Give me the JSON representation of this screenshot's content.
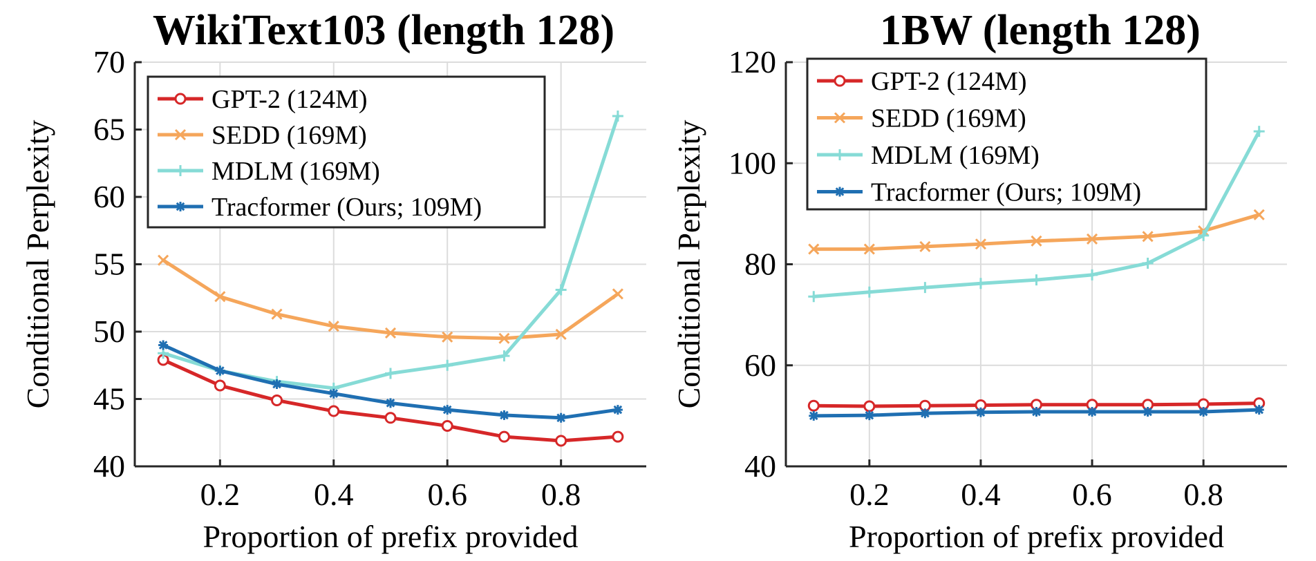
{
  "chart_data": [
    {
      "type": "line",
      "title": "WikiText103 (length 128)",
      "xlabel": "Proportion of prefix provided",
      "ylabel": "Conditional Perplexity",
      "xlim": [
        0.05,
        0.95
      ],
      "ylim": [
        40,
        70
      ],
      "xticks": [
        0.2,
        0.4,
        0.6,
        0.8
      ],
      "xtick_labels": [
        "0.2",
        "0.4",
        "0.6",
        "0.8"
      ],
      "yticks": [
        40,
        45,
        50,
        55,
        60,
        65,
        70
      ],
      "ytick_labels": [
        "40",
        "45",
        "50",
        "55",
        "60",
        "65",
        "70"
      ],
      "grid": true,
      "legend_position": "top-left",
      "x": [
        0.1,
        0.2,
        0.3,
        0.4,
        0.5,
        0.6,
        0.7,
        0.8,
        0.9
      ],
      "series": [
        {
          "name": "GPT-2 (124M)",
          "color": "#d62728",
          "marker": "circle",
          "values": [
            47.9,
            46.0,
            44.9,
            44.1,
            43.6,
            43.0,
            42.2,
            41.9,
            42.2
          ]
        },
        {
          "name": "SEDD (169M)",
          "color": "#f5a65b",
          "marker": "x",
          "values": [
            55.3,
            52.6,
            51.3,
            50.4,
            49.9,
            49.6,
            49.5,
            49.8,
            52.8
          ]
        },
        {
          "name": "MDLM (169M)",
          "color": "#86dbd6",
          "marker": "plus",
          "values": [
            48.4,
            47.1,
            46.3,
            45.8,
            46.9,
            47.5,
            48.2,
            53.1,
            66.0
          ]
        },
        {
          "name": "Tracformer (Ours; 109M)",
          "color": "#1f6fb2",
          "marker": "star",
          "values": [
            49.0,
            47.1,
            46.1,
            45.4,
            44.7,
            44.2,
            43.8,
            43.6,
            44.2
          ]
        }
      ]
    },
    {
      "type": "line",
      "title": "1BW (length 128)",
      "xlabel": "Proportion of prefix provided",
      "ylabel": "Conditional Perplexity",
      "xlim": [
        0.05,
        0.95
      ],
      "ylim": [
        40,
        120
      ],
      "xticks": [
        0.2,
        0.4,
        0.6,
        0.8
      ],
      "xtick_labels": [
        "0.2",
        "0.4",
        "0.6",
        "0.8"
      ],
      "yticks": [
        40,
        60,
        80,
        100,
        120
      ],
      "ytick_labels": [
        "40",
        "60",
        "80",
        "100",
        "120"
      ],
      "grid": true,
      "legend_position": "top-left",
      "x": [
        0.1,
        0.2,
        0.3,
        0.4,
        0.5,
        0.6,
        0.7,
        0.8,
        0.9
      ],
      "series": [
        {
          "name": "GPT-2 (124M)",
          "color": "#d62728",
          "marker": "circle",
          "values": [
            52.0,
            51.9,
            52.0,
            52.1,
            52.2,
            52.2,
            52.2,
            52.3,
            52.5
          ]
        },
        {
          "name": "SEDD (169M)",
          "color": "#f5a65b",
          "marker": "x",
          "values": [
            83.0,
            83.0,
            83.5,
            84.0,
            84.6,
            85.0,
            85.5,
            86.6,
            89.8
          ]
        },
        {
          "name": "MDLM (169M)",
          "color": "#86dbd6",
          "marker": "plus",
          "values": [
            73.6,
            74.5,
            75.4,
            76.2,
            76.9,
            77.9,
            80.2,
            85.7,
            106.3
          ]
        },
        {
          "name": "Tracformer (Ours; 109M)",
          "color": "#1f6fb2",
          "marker": "star",
          "values": [
            50.0,
            50.1,
            50.5,
            50.7,
            50.8,
            50.8,
            50.8,
            50.8,
            51.2
          ]
        }
      ]
    }
  ]
}
